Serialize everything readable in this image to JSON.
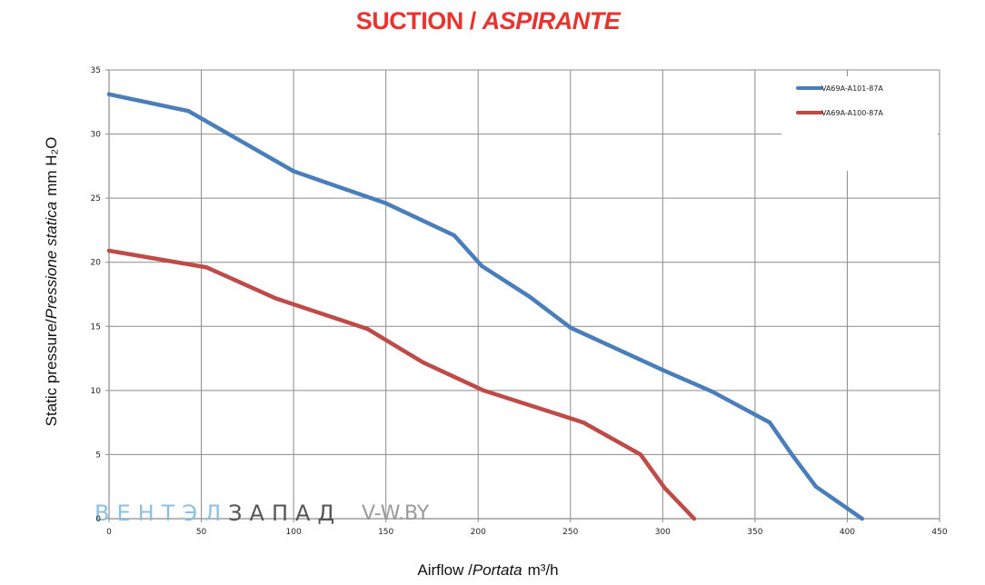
{
  "title": {
    "main": "SUCTION /",
    "italic": "ASPIRANTE"
  },
  "watermark": {
    "part1": "ВЕНТЭЛ",
    "part2": "ЗАПАД",
    "part3": "V-W.BY"
  },
  "chart_data": {
    "type": "line",
    "xlabel": {
      "main": "Airflow /",
      "italic": "Portata",
      "unit": "m³/h"
    },
    "ylabel": {
      "main": "Static pressure/",
      "italic": "Pressione statica",
      "unit": "mm H₂O"
    },
    "xlim": [
      0,
      450
    ],
    "ylim": [
      0,
      35
    ],
    "xticks": [
      "0",
      "50",
      "100",
      "150",
      "200",
      "250",
      "300",
      "350",
      "400",
      "450"
    ],
    "yticks": [
      "0",
      "5",
      "10",
      "15",
      "20",
      "25",
      "30",
      "35"
    ],
    "grid": true,
    "legend_position": "top-right",
    "series": [
      {
        "name": "VA69A-A101-87A",
        "color": "#4a7ebb",
        "points": [
          [
            0,
            33.1
          ],
          [
            43,
            31.8
          ],
          [
            100,
            27.1
          ],
          [
            150,
            24.6
          ],
          [
            187,
            22.1
          ],
          [
            202,
            19.7
          ],
          [
            228,
            17.3
          ],
          [
            250,
            14.9
          ],
          [
            300,
            11.6
          ],
          [
            327,
            9.9
          ],
          [
            358,
            7.5
          ],
          [
            370,
            5.0
          ],
          [
            383,
            2.5
          ],
          [
            408,
            0
          ]
        ]
      },
      {
        "name": "VA69A-A100-87A",
        "color": "#be4b48",
        "points": [
          [
            0,
            20.9
          ],
          [
            53,
            19.6
          ],
          [
            90,
            17.2
          ],
          [
            140,
            14.8
          ],
          [
            170,
            12.2
          ],
          [
            203,
            10.0
          ],
          [
            257,
            7.5
          ],
          [
            288,
            5.0
          ],
          [
            301,
            2.4
          ],
          [
            317,
            0
          ]
        ]
      }
    ]
  }
}
